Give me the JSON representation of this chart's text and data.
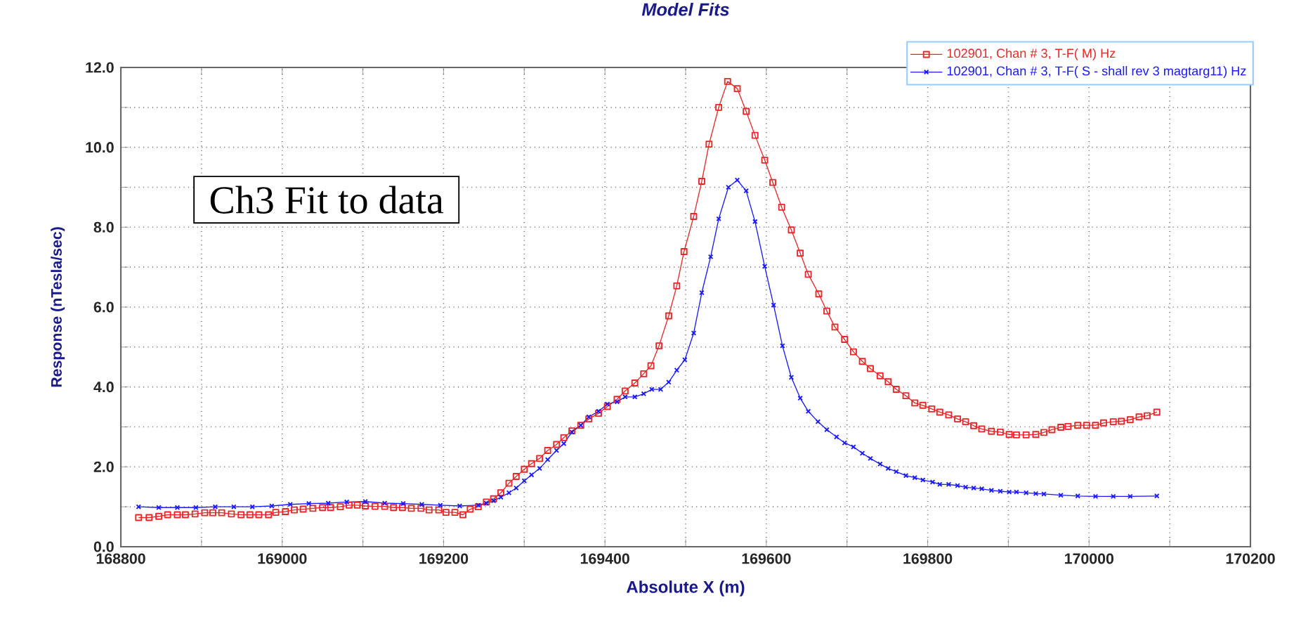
{
  "chart_data": {
    "type": "line",
    "title": "Model Fits",
    "xlabel": "Absolute X (m)",
    "ylabel": "Response (nTesla/sec)",
    "annotations": [
      "Ch3 Fit to data"
    ],
    "xlim": [
      168800,
      170200
    ],
    "ylim": [
      0,
      12
    ],
    "xticks": [
      168800,
      {
        "value": 168900,
        "label": null
      },
      169000,
      {
        "value": 169100,
        "label": null
      },
      169200,
      {
        "value": 169300,
        "label": null
      },
      169400,
      {
        "value": 169500,
        "label": null
      },
      169600,
      {
        "value": 169700,
        "label": null
      },
      169800,
      {
        "value": 169900,
        "label": null
      },
      170000,
      {
        "value": 170100,
        "label": null
      },
      170200
    ],
    "yticks": [
      {
        "value": 0,
        "label": "0.0"
      },
      {
        "value": 1,
        "label": null
      },
      {
        "value": 2,
        "label": "2.0"
      },
      {
        "value": 3,
        "label": null
      },
      {
        "value": 4,
        "label": "4.0"
      },
      {
        "value": 5,
        "label": null
      },
      {
        "value": 6,
        "label": "6.0"
      },
      {
        "value": 7,
        "label": null
      },
      {
        "value": 8,
        "label": "8.0"
      },
      {
        "value": 9,
        "label": null
      },
      {
        "value": 10,
        "label": "10.0"
      },
      {
        "value": 11,
        "label": null
      },
      {
        "value": 12,
        "label": "12.0"
      }
    ],
    "grid": true,
    "legend": "top right",
    "line_style": "solid",
    "series": [
      {
        "name": "102901, Chan # 3, T-F( M) Hz",
        "color": "#e8282a",
        "marker": "square",
        "x": [
          168822,
          168835,
          168847,
          168858,
          168870,
          168880,
          168892,
          168904,
          168914,
          168925,
          168937,
          168949,
          168960,
          168971,
          168983,
          168992,
          169004,
          169015,
          169026,
          169038,
          169050,
          169060,
          169072,
          169083,
          169093,
          169103,
          169115,
          169127,
          169138,
          169149,
          169160,
          169172,
          169182,
          169194,
          169203,
          169214,
          169224,
          169233,
          169243,
          169253,
          169262,
          169271,
          169281,
          169290,
          169300,
          169309,
          169319,
          169329,
          169340,
          169349,
          169359,
          169370,
          169380,
          169392,
          169403,
          169415,
          169425,
          169437,
          169448,
          169457,
          169467,
          169479,
          169489,
          169498,
          169510,
          169520,
          169529,
          169541,
          169552,
          169564,
          169575,
          169586,
          169598,
          169608,
          169619,
          169631,
          169642,
          169652,
          169665,
          169675,
          169685,
          169697,
          169708,
          169719,
          169729,
          169741,
          169751,
          169761,
          169773,
          169784,
          169794,
          169805,
          169815,
          169826,
          169837,
          169847,
          169857,
          169867,
          169879,
          169890,
          169901,
          169910,
          169922,
          169934,
          169944,
          169954,
          169965,
          169974,
          169986,
          169997,
          170008,
          170018,
          170030,
          170040,
          170051,
          170062,
          170072,
          170084
        ],
        "values": [
          0.73,
          0.73,
          0.76,
          0.8,
          0.8,
          0.8,
          0.82,
          0.85,
          0.85,
          0.85,
          0.82,
          0.8,
          0.8,
          0.8,
          0.8,
          0.86,
          0.88,
          0.92,
          0.94,
          0.96,
          0.98,
          0.98,
          1.0,
          1.04,
          1.04,
          1.02,
          1.01,
          1.01,
          0.98,
          0.98,
          0.96,
          0.96,
          0.92,
          0.92,
          0.86,
          0.86,
          0.8,
          0.94,
          1.0,
          1.12,
          1.2,
          1.35,
          1.59,
          1.76,
          1.94,
          2.08,
          2.21,
          2.41,
          2.56,
          2.73,
          2.9,
          3.04,
          3.2,
          3.34,
          3.51,
          3.69,
          3.9,
          4.1,
          4.33,
          4.53,
          5.03,
          5.78,
          6.53,
          7.39,
          8.27,
          9.15,
          10.08,
          11.0,
          11.65,
          11.47,
          10.9,
          10.3,
          9.68,
          9.12,
          8.5,
          7.93,
          7.35,
          6.82,
          6.33,
          5.9,
          5.5,
          5.19,
          4.88,
          4.64,
          4.46,
          4.28,
          4.13,
          3.94,
          3.78,
          3.6,
          3.54,
          3.45,
          3.37,
          3.3,
          3.2,
          3.13,
          3.03,
          2.95,
          2.89,
          2.87,
          2.81,
          2.8,
          2.8,
          2.81,
          2.86,
          2.93,
          2.99,
          3.01,
          3.04,
          3.04,
          3.04,
          3.1,
          3.13,
          3.14,
          3.18,
          3.25,
          3.28,
          3.37
        ]
      },
      {
        "name": "102901, Chan # 3, T-F( S - shall rev 3  magtarg11) Hz",
        "color": "#1a1aff",
        "marker": "cross",
        "x": [
          168822,
          168847,
          168870,
          168893,
          168917,
          168940,
          168963,
          168987,
          169010,
          169033,
          169057,
          169080,
          169103,
          169127,
          169150,
          169173,
          169196,
          169220,
          169243,
          169253,
          169262,
          169271,
          169281,
          169290,
          169300,
          169309,
          169319,
          169329,
          169340,
          169349,
          169359,
          169370,
          169380,
          169392,
          169403,
          169415,
          169425,
          169437,
          169448,
          169458,
          169469,
          169479,
          169489,
          169499,
          169510,
          169520,
          169531,
          169541,
          169553,
          169564,
          169575,
          169586,
          169598,
          169609,
          169620,
          169631,
          169642,
          169652,
          169664,
          169675,
          169687,
          169697,
          169708,
          169719,
          169729,
          169741,
          169751,
          169761,
          169773,
          169784,
          169794,
          169806,
          169815,
          169826,
          169837,
          169847,
          169857,
          169867,
          169879,
          169890,
          169901,
          169910,
          169922,
          169934,
          169944,
          169965,
          169986,
          170008,
          170030,
          170051,
          170084
        ],
        "values": [
          1.0,
          0.98,
          0.98,
          0.98,
          1.0,
          1.0,
          1.0,
          1.02,
          1.06,
          1.08,
          1.09,
          1.12,
          1.13,
          1.09,
          1.08,
          1.06,
          1.04,
          1.02,
          1.04,
          1.09,
          1.15,
          1.24,
          1.35,
          1.47,
          1.65,
          1.8,
          1.96,
          2.18,
          2.41,
          2.58,
          2.87,
          3.04,
          3.25,
          3.39,
          3.57,
          3.63,
          3.75,
          3.75,
          3.83,
          3.94,
          3.94,
          4.12,
          4.42,
          4.68,
          5.35,
          6.36,
          7.26,
          8.21,
          9.0,
          9.18,
          8.91,
          8.14,
          7.02,
          6.05,
          5.03,
          4.24,
          3.72,
          3.39,
          3.13,
          2.93,
          2.75,
          2.6,
          2.5,
          2.34,
          2.21,
          2.07,
          1.96,
          1.88,
          1.78,
          1.73,
          1.67,
          1.62,
          1.56,
          1.56,
          1.53,
          1.49,
          1.47,
          1.45,
          1.41,
          1.39,
          1.37,
          1.37,
          1.35,
          1.33,
          1.32,
          1.29,
          1.27,
          1.26,
          1.26,
          1.26,
          1.27
        ]
      }
    ]
  }
}
